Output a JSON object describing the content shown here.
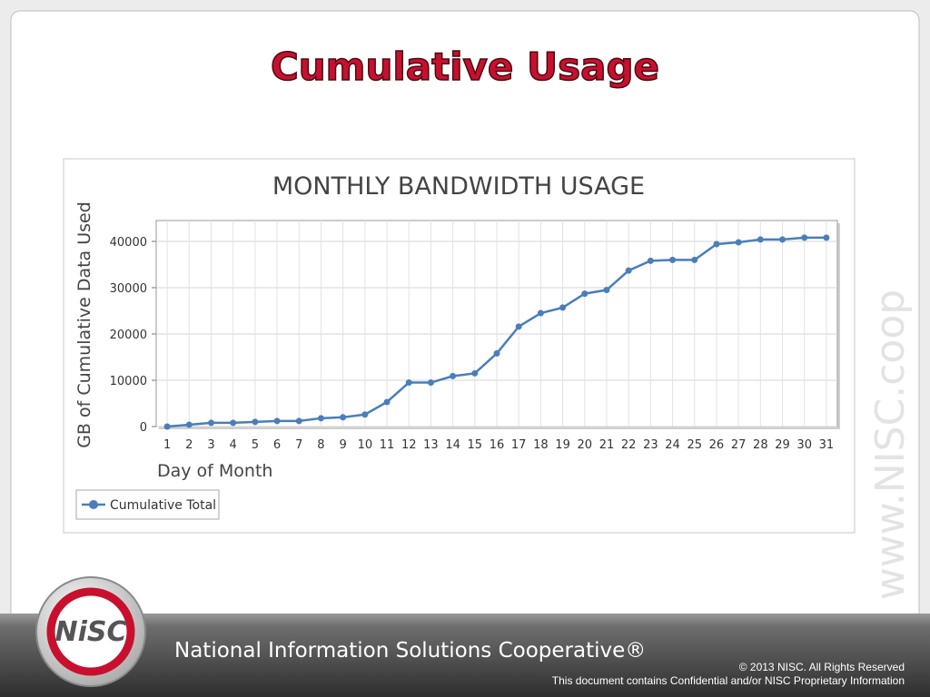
{
  "slide": {
    "title": "Cumulative Usage",
    "watermark": "www.NISC.coop",
    "logo": "NiSC",
    "footer": {
      "organization": "National Information Solutions Cooperative®",
      "copyright": "© 2013 NISC. All Rights Reserved",
      "notice": "This document contains Confidential and/or NISC Proprietary Information"
    }
  },
  "chart_data": {
    "type": "line",
    "title": "MONTHLY BANDWIDTH USAGE",
    "x_label": "Day of Month",
    "y_label": "GB of Cumulative Data Used",
    "categories": [
      "1",
      "2",
      "3",
      "4",
      "5",
      "6",
      "7",
      "8",
      "9",
      "10",
      "11",
      "12",
      "13",
      "14",
      "15",
      "16",
      "17",
      "18",
      "19",
      "20",
      "21",
      "22",
      "23",
      "24",
      "25",
      "26",
      "27",
      "28",
      "29",
      "30",
      "31"
    ],
    "series": [
      {
        "name": "Cumulative Total",
        "color": "#4a7ebb",
        "values": [
          0,
          400,
          800,
          800,
          1000,
          1200,
          1200,
          1800,
          2000,
          2600,
          5300,
          9500,
          9500,
          10900,
          11500,
          15800,
          21600,
          24500,
          25700,
          28700,
          29500,
          33700,
          35800,
          36000,
          36000,
          39400,
          39800,
          40400,
          40400,
          40800,
          40800
        ]
      }
    ],
    "ylim": [
      0,
      44500
    ],
    "yticks": [
      0,
      10000,
      20000,
      30000,
      40000
    ],
    "grid": true,
    "legend": "bottom-left"
  }
}
